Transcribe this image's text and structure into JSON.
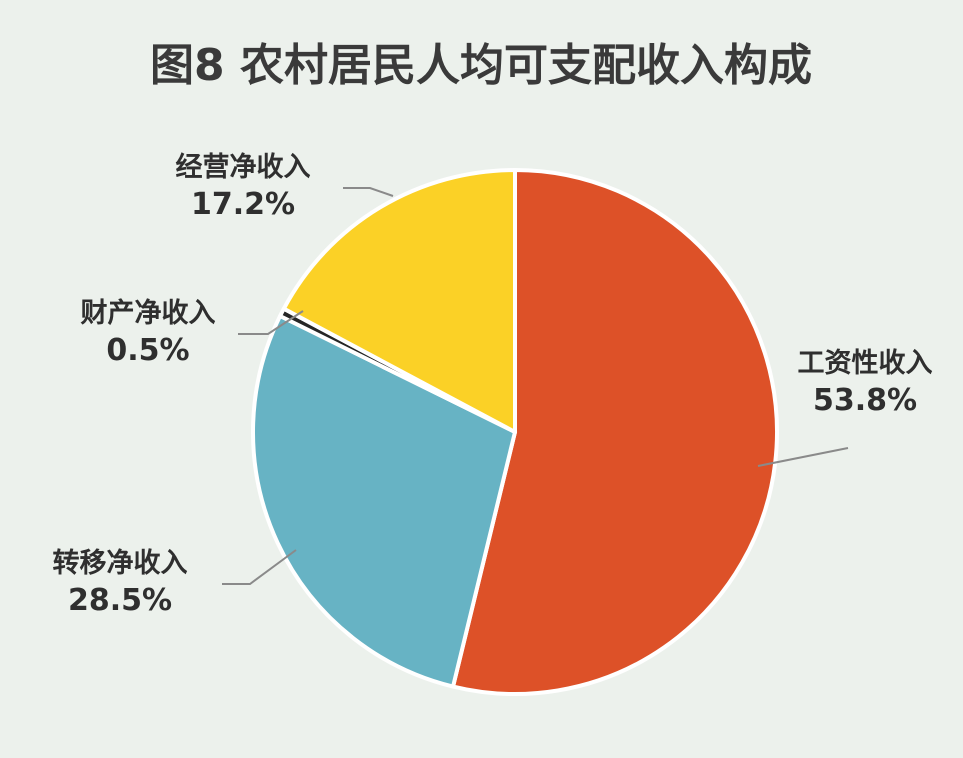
{
  "chart_data": {
    "type": "pie",
    "title": "图8  农村居民人均可支配收入构成",
    "slices": [
      {
        "label": "工资性收入",
        "value": 53.8,
        "value_text": "53.8%",
        "color": "#dd5128"
      },
      {
        "label": "转移净收入",
        "value": 28.5,
        "value_text": "28.5%",
        "color": "#67b3c4"
      },
      {
        "label": "财产净收入",
        "value": 0.5,
        "value_text": "0.5%",
        "color": "#262626"
      },
      {
        "label": "经营净收入",
        "value": 17.2,
        "value_text": "17.2%",
        "color": "#fbd126"
      }
    ],
    "start_at": "12 o'clock",
    "direction": "clockwise",
    "legend": "none",
    "data_labels": "outside with leader lines"
  },
  "colors": {
    "background": "#ecf1ec",
    "leader_line": "#8a8a8a",
    "slice_border": "#ffffff"
  }
}
